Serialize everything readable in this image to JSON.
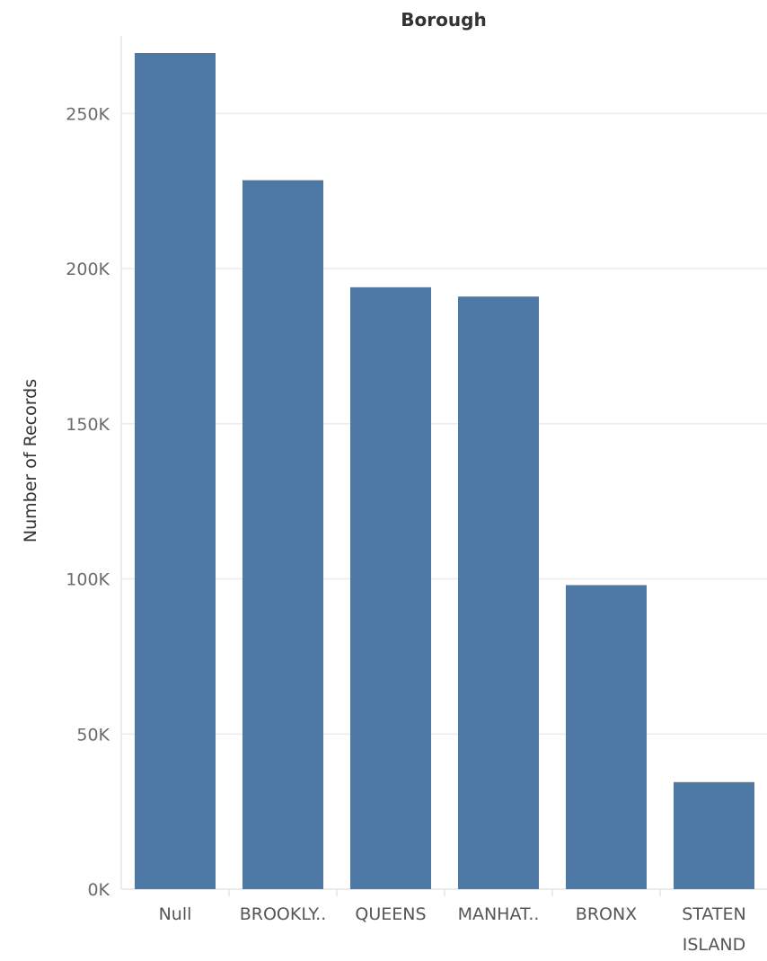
{
  "chart_data": {
    "type": "bar",
    "title": "Borough",
    "xlabel": "",
    "ylabel": "Number of Records",
    "categories": [
      "Null",
      "BROOKLY..",
      "QUEENS",
      "MANHAT..",
      "BRONX",
      [
        "STATEN",
        "ISLAND"
      ]
    ],
    "values": [
      269500,
      228500,
      194000,
      191000,
      98000,
      34500
    ],
    "ylim": [
      0,
      275000
    ],
    "yticks": [
      0,
      50000,
      100000,
      150000,
      200000,
      250000
    ],
    "ytick_labels": [
      "0K",
      "50K",
      "100K",
      "150K",
      "200K",
      "250K"
    ],
    "grid": true,
    "colors": {
      "bar": "#4e79a7",
      "grid": "#ececec",
      "axis": "#d9d9d9"
    }
  }
}
